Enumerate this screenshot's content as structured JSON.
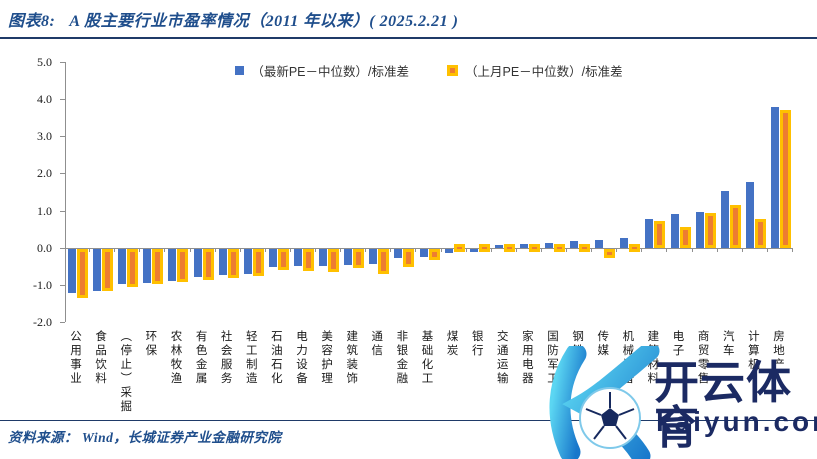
{
  "title": {
    "prefix": "图表8:",
    "text": "A 股主要行业市盈率情况（2011 年以来）( 2025.2.21 )"
  },
  "legend": {
    "items": [
      {
        "label": "（最新PE－中位数）/标准差",
        "marker": "blue-square",
        "color": "#4472C4"
      },
      {
        "label": "（上月PE－中位数）/标准差",
        "marker": "yellow-square-orange-dot",
        "color": "#FFC000"
      }
    ]
  },
  "chart_data": {
    "type": "bar",
    "title": "图表8: A 股主要行业市盈率情况（2011 年以来）( 2025.2.21 )",
    "xlabel": "",
    "ylabel": "",
    "ylim": [
      -2.0,
      5.0
    ],
    "yticks": [
      "5.0",
      "4.0",
      "3.0",
      "2.0",
      "1.0",
      "0.0",
      "-1.0",
      "-2.0"
    ],
    "grid": false,
    "legend_position": "top-center",
    "categories": [
      "公用事业",
      "食品饮料",
      "（停止）采掘",
      "环保",
      "农林牧渔",
      "有色金属",
      "社会服务",
      "轻工制造",
      "石油石化",
      "电力设备",
      "美容护理",
      "建筑装饰",
      "通信",
      "非银金融",
      "基础化工",
      "煤炭",
      "银行",
      "交通运输",
      "家用电器",
      "国防军工",
      "钢铁",
      "传媒",
      "机械设备",
      "建筑材料",
      "电子",
      "商贸零售",
      "汽车",
      "计算机",
      "房地产"
    ],
    "series": [
      {
        "name": "（最新PE－中位数）/标准差",
        "color": "#4472C4",
        "values": [
          -1.2,
          -1.13,
          -0.96,
          -0.91,
          -0.86,
          -0.77,
          -0.7,
          -0.67,
          -0.5,
          -0.47,
          -0.46,
          -0.43,
          -0.42,
          -0.26,
          -0.22,
          -0.11,
          -0.08,
          0.06,
          0.11,
          0.13,
          0.19,
          0.2,
          0.25,
          0.77,
          0.9,
          0.95,
          1.53,
          1.76,
          3.78
        ]
      },
      {
        "name": "（上月PE－中位数）/标准差",
        "color": "#ED7D31",
        "border_color": "#FFC000",
        "values": [
          -1.32,
          -1.15,
          -1.04,
          -0.95,
          -0.9,
          -0.83,
          -0.8,
          -0.74,
          -0.58,
          -0.6,
          -0.64,
          -0.53,
          -0.67,
          -0.49,
          -0.31,
          -0.14,
          -0.11,
          0.03,
          0.07,
          0.09,
          0.16,
          -0.25,
          0.11,
          0.73,
          0.56,
          0.93,
          1.14,
          0.78,
          3.72
        ]
      }
    ]
  },
  "source": {
    "text": "资料来源： Wind，长城证券产业金融研究院"
  },
  "watermark": {
    "brand": "开云体育",
    "domain": "kaiyun.com"
  },
  "colors": {
    "title_text": "#1F4E8C",
    "rule": "#1F3A68",
    "axis": "#8f8f8f",
    "bar_latest": "#4472C4",
    "bar_prev_fill": "#ED7D31",
    "bar_prev_border": "#FFC000",
    "watermark_text": "#1B2A63"
  }
}
